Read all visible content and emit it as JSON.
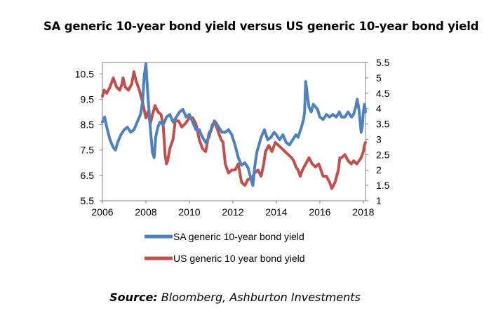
{
  "chart_data": {
    "type": "line",
    "title": "SA generic 10-year bond yield versus US generic 10-year bond yield",
    "x_ticks": [
      "2006",
      "2008",
      "2010",
      "2012",
      "2014",
      "2016",
      "2018"
    ],
    "xlim": [
      2006,
      2018.1
    ],
    "y_left": {
      "ticks": [
        "5.5",
        "6.5",
        "7.5",
        "8.5",
        "9.5",
        "10.5"
      ],
      "ylim": [
        5.5,
        10.95
      ]
    },
    "y_right": {
      "ticks": [
        "1",
        "1.5",
        "2",
        "2.5",
        "3",
        "3.5",
        "4",
        "4.5",
        "5",
        "5.5"
      ],
      "ylim": [
        1,
        5.5
      ]
    },
    "grid": false,
    "legend_position": "bottom",
    "series": [
      {
        "name": "SA generic 10-year bond yield",
        "axis": "left",
        "color": "#4f81bd",
        "points": [
          [
            2006.0,
            8.6
          ],
          [
            2006.1,
            8.8
          ],
          [
            2006.2,
            8.4
          ],
          [
            2006.35,
            7.9
          ],
          [
            2006.5,
            7.6
          ],
          [
            2006.6,
            7.5
          ],
          [
            2006.7,
            7.8
          ],
          [
            2006.85,
            8.1
          ],
          [
            2007.0,
            8.3
          ],
          [
            2007.15,
            8.4
          ],
          [
            2007.3,
            8.2
          ],
          [
            2007.45,
            8.3
          ],
          [
            2007.6,
            8.6
          ],
          [
            2007.75,
            8.9
          ],
          [
            2007.85,
            9.4
          ],
          [
            2007.92,
            10.4
          ],
          [
            2008.0,
            10.9
          ],
          [
            2008.05,
            10.2
          ],
          [
            2008.12,
            9.3
          ],
          [
            2008.2,
            8.4
          ],
          [
            2008.3,
            7.4
          ],
          [
            2008.38,
            7.2
          ],
          [
            2008.45,
            8.0
          ],
          [
            2008.55,
            8.4
          ],
          [
            2008.65,
            8.6
          ],
          [
            2008.8,
            8.5
          ],
          [
            2008.95,
            8.8
          ],
          [
            2009.1,
            8.9
          ],
          [
            2009.25,
            8.6
          ],
          [
            2009.4,
            8.8
          ],
          [
            2009.55,
            9.0
          ],
          [
            2009.7,
            9.1
          ],
          [
            2009.85,
            8.8
          ],
          [
            2010.0,
            8.9
          ],
          [
            2010.15,
            8.6
          ],
          [
            2010.3,
            8.3
          ],
          [
            2010.45,
            8.3
          ],
          [
            2010.6,
            8.0
          ],
          [
            2010.75,
            7.8
          ],
          [
            2010.9,
            8.0
          ],
          [
            2011.05,
            8.5
          ],
          [
            2011.2,
            8.6
          ],
          [
            2011.35,
            8.4
          ],
          [
            2011.5,
            8.2
          ],
          [
            2011.65,
            8.2
          ],
          [
            2011.8,
            8.3
          ],
          [
            2011.95,
            8.1
          ],
          [
            2012.1,
            7.7
          ],
          [
            2012.25,
            7.2
          ],
          [
            2012.4,
            6.9
          ],
          [
            2012.55,
            7.0
          ],
          [
            2012.7,
            6.8
          ],
          [
            2012.85,
            6.3
          ],
          [
            2012.92,
            6.1
          ],
          [
            2013.0,
            6.8
          ],
          [
            2013.1,
            7.4
          ],
          [
            2013.2,
            7.7
          ],
          [
            2013.3,
            8.0
          ],
          [
            2013.45,
            8.3
          ],
          [
            2013.6,
            7.9
          ],
          [
            2013.75,
            8.0
          ],
          [
            2013.9,
            8.2
          ],
          [
            2014.0,
            8.1
          ],
          [
            2014.15,
            7.9
          ],
          [
            2014.3,
            8.1
          ],
          [
            2014.45,
            7.8
          ],
          [
            2014.6,
            7.7
          ],
          [
            2014.75,
            7.9
          ],
          [
            2014.9,
            8.1
          ],
          [
            2015.0,
            8.0
          ],
          [
            2015.15,
            8.4
          ],
          [
            2015.25,
            8.7
          ],
          [
            2015.3,
            9.0
          ],
          [
            2015.35,
            10.2
          ],
          [
            2015.42,
            9.7
          ],
          [
            2015.5,
            9.2
          ],
          [
            2015.6,
            9.0
          ],
          [
            2015.7,
            9.3
          ],
          [
            2015.8,
            9.2
          ],
          [
            2015.9,
            9.1
          ],
          [
            2016.0,
            8.8
          ],
          [
            2016.15,
            8.7
          ],
          [
            2016.3,
            8.9
          ],
          [
            2016.45,
            8.8
          ],
          [
            2016.6,
            8.9
          ],
          [
            2016.75,
            8.8
          ],
          [
            2016.9,
            9.0
          ],
          [
            2017.0,
            8.8
          ],
          [
            2017.15,
            8.8
          ],
          [
            2017.3,
            9.0
          ],
          [
            2017.45,
            8.8
          ],
          [
            2017.55,
            8.9
          ],
          [
            2017.65,
            9.2
          ],
          [
            2017.72,
            9.5
          ],
          [
            2017.8,
            9.1
          ],
          [
            2017.9,
            8.2
          ],
          [
            2017.95,
            8.4
          ],
          [
            2018.0,
            9.0
          ],
          [
            2018.05,
            9.3
          ],
          [
            2018.1,
            9.0
          ]
        ]
      },
      {
        "name": "US generic 10 year bond yield",
        "axis": "right",
        "color": "#c0504d",
        "points": [
          [
            2006.0,
            4.4
          ],
          [
            2006.08,
            4.6
          ],
          [
            2006.2,
            4.5
          ],
          [
            2006.35,
            4.7
          ],
          [
            2006.5,
            5.0
          ],
          [
            2006.65,
            4.7
          ],
          [
            2006.8,
            4.6
          ],
          [
            2006.9,
            4.8
          ],
          [
            2006.95,
            5.0
          ],
          [
            2007.05,
            4.7
          ],
          [
            2007.2,
            4.6
          ],
          [
            2007.35,
            4.8
          ],
          [
            2007.45,
            5.2
          ],
          [
            2007.55,
            4.9
          ],
          [
            2007.7,
            4.6
          ],
          [
            2007.85,
            4.2
          ],
          [
            2008.0,
            3.7
          ],
          [
            2008.1,
            3.9
          ],
          [
            2008.2,
            3.5
          ],
          [
            2008.3,
            3.8
          ],
          [
            2008.42,
            4.1
          ],
          [
            2008.55,
            3.9
          ],
          [
            2008.7,
            3.8
          ],
          [
            2008.8,
            3.4
          ],
          [
            2008.88,
            2.5
          ],
          [
            2008.95,
            2.2
          ],
          [
            2009.0,
            2.3
          ],
          [
            2009.1,
            2.7
          ],
          [
            2009.25,
            3.0
          ],
          [
            2009.35,
            3.6
          ],
          [
            2009.5,
            3.6
          ],
          [
            2009.65,
            3.4
          ],
          [
            2009.8,
            3.5
          ],
          [
            2010.0,
            3.7
          ],
          [
            2010.15,
            3.7
          ],
          [
            2010.3,
            3.5
          ],
          [
            2010.45,
            3.0
          ],
          [
            2010.6,
            2.7
          ],
          [
            2010.75,
            2.6
          ],
          [
            2010.9,
            3.2
          ],
          [
            2011.0,
            3.3
          ],
          [
            2011.15,
            3.6
          ],
          [
            2011.3,
            3.3
          ],
          [
            2011.45,
            3.0
          ],
          [
            2011.55,
            2.9
          ],
          [
            2011.65,
            2.2
          ],
          [
            2011.8,
            1.9
          ],
          [
            2011.95,
            2.0
          ],
          [
            2012.1,
            2.0
          ],
          [
            2012.25,
            2.2
          ],
          [
            2012.4,
            1.6
          ],
          [
            2012.55,
            1.5
          ],
          [
            2012.7,
            1.7
          ],
          [
            2012.85,
            1.7
          ],
          [
            2013.0,
            1.9
          ],
          [
            2013.15,
            2.0
          ],
          [
            2013.3,
            1.8
          ],
          [
            2013.42,
            2.2
          ],
          [
            2013.5,
            2.6
          ],
          [
            2013.65,
            2.8
          ],
          [
            2013.8,
            2.6
          ],
          [
            2013.95,
            2.9
          ],
          [
            2014.1,
            2.8
          ],
          [
            2014.25,
            2.7
          ],
          [
            2014.4,
            2.6
          ],
          [
            2014.55,
            2.5
          ],
          [
            2014.7,
            2.4
          ],
          [
            2014.8,
            2.3
          ],
          [
            2014.9,
            2.1
          ],
          [
            2015.0,
            2.0
          ],
          [
            2015.1,
            1.8
          ],
          [
            2015.2,
            2.0
          ],
          [
            2015.35,
            2.2
          ],
          [
            2015.5,
            2.4
          ],
          [
            2015.65,
            2.2
          ],
          [
            2015.8,
            2.1
          ],
          [
            2015.95,
            2.2
          ],
          [
            2016.05,
            2.0
          ],
          [
            2016.15,
            1.8
          ],
          [
            2016.3,
            1.8
          ],
          [
            2016.45,
            1.6
          ],
          [
            2016.55,
            1.4
          ],
          [
            2016.7,
            1.6
          ],
          [
            2016.85,
            2.0
          ],
          [
            2016.92,
            2.4
          ],
          [
            2017.0,
            2.4
          ],
          [
            2017.15,
            2.5
          ],
          [
            2017.3,
            2.3
          ],
          [
            2017.45,
            2.2
          ],
          [
            2017.55,
            2.3
          ],
          [
            2017.7,
            2.2
          ],
          [
            2017.8,
            2.3
          ],
          [
            2017.9,
            2.4
          ],
          [
            2018.0,
            2.6
          ],
          [
            2018.05,
            2.8
          ],
          [
            2018.1,
            2.9
          ]
        ]
      }
    ]
  },
  "source": {
    "label": "Source:",
    "text": "Bloomberg, Ashburton Investments"
  }
}
